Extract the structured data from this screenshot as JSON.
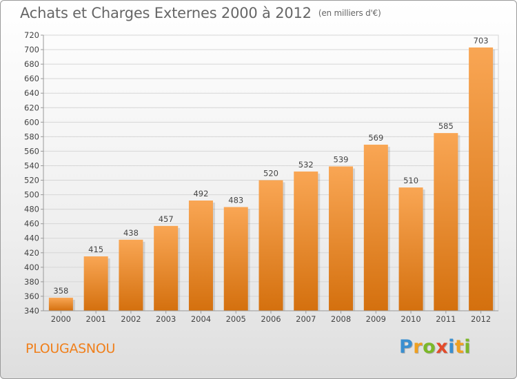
{
  "header": {
    "title": "Achats et Charges Externes 2000 à 2012",
    "unit": "(en milliers d'€)"
  },
  "footer": {
    "commune": "PLOUGASNOU",
    "logo_text": "Proxiti",
    "logo_colors": [
      "#3a8fd0",
      "#f0a020",
      "#7cb829",
      "#e34b2b",
      "#3a8fd0",
      "#f0a020",
      "#7cb829"
    ]
  },
  "colors": {
    "bar_light": "#f9a654",
    "bar_dark": "#d4700e",
    "accent": "#f07f1a"
  },
  "chart_data": {
    "type": "bar",
    "title": "Achats et Charges Externes 2000 à 2012",
    "subtitle": "(en milliers d'€)",
    "xlabel": "",
    "ylabel": "",
    "categories": [
      "2000",
      "2001",
      "2002",
      "2003",
      "2004",
      "2005",
      "2006",
      "2007",
      "2008",
      "2009",
      "2010",
      "2011",
      "2012"
    ],
    "values": [
      358,
      415,
      438,
      457,
      492,
      483,
      520,
      532,
      539,
      569,
      510,
      585,
      703
    ],
    "ylim": [
      340,
      720
    ],
    "yticks": [
      340,
      360,
      380,
      400,
      420,
      440,
      460,
      480,
      500,
      520,
      540,
      560,
      580,
      600,
      620,
      640,
      660,
      680,
      700,
      720
    ],
    "grid": true,
    "legend": "none"
  }
}
